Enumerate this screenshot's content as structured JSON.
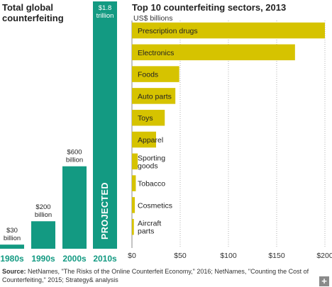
{
  "left_title": "Total global counterfeiting",
  "right_title": "Top 10 counterfeiting sectors, 2013",
  "right_unit": "US$ billions",
  "source_label": "Source:",
  "source_text": "NetNames, \"The Risks of the Online Counterfeit Economy,\" 2016; NetNames, \"Counting the Cost of Counterfeiting,\" 2015; Strategy& analysis",
  "plus_icon": "+",
  "colors": {
    "teal": "#139a82",
    "yellow": "#d6c300",
    "grid": "#b0b0b0"
  },
  "chart_data": [
    {
      "type": "bar",
      "title": "Total global counterfeiting",
      "categories": [
        "1980s",
        "1990s",
        "2000s",
        "2010s"
      ],
      "values": [
        30,
        200,
        600,
        1800
      ],
      "value_labels": [
        "$30 billion",
        "$200 billion",
        "$600 billion",
        "$1.8 trillion"
      ],
      "annotations": [
        "PROJECTED"
      ],
      "units": "US$ billions"
    },
    {
      "type": "bar",
      "orientation": "horizontal",
      "title": "Top 10 counterfeiting sectors, 2013",
      "xlabel": "US$ billions",
      "categories": [
        "Prescription drugs",
        "Electronics",
        "Foods",
        "Auto parts",
        "Toys",
        "Apparel",
        "Sporting goods",
        "Tobacco",
        "Cosmetics",
        "Aircraft parts"
      ],
      "values": [
        200,
        169,
        49,
        45,
        34,
        25,
        6,
        4,
        3,
        2
      ],
      "xlim": [
        0,
        200
      ],
      "xticks": [
        "$0",
        "$50",
        "$100",
        "$150",
        "$200"
      ],
      "grid": "vertical"
    }
  ]
}
